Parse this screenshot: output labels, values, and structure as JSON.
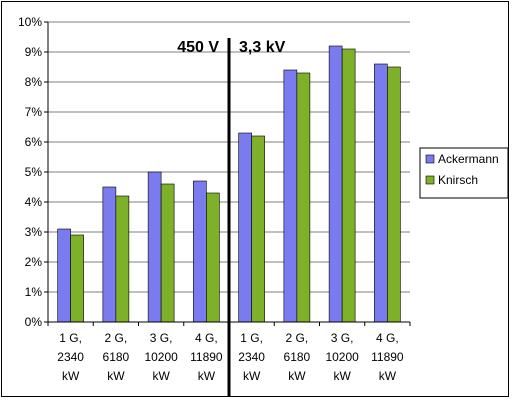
{
  "chart_data": {
    "type": "bar",
    "categories": [
      [
        "1 G,",
        "2340",
        "kW"
      ],
      [
        "2 G,",
        "6180",
        "kW"
      ],
      [
        "3 G,",
        "10200",
        "kW"
      ],
      [
        "4 G,",
        "11890",
        "kW"
      ],
      [
        "1 G,",
        "2340",
        "kW"
      ],
      [
        "2 G,",
        "6180",
        "kW"
      ],
      [
        "3 G,",
        "10200",
        "kW"
      ],
      [
        "4 G,",
        "11890",
        "kW"
      ]
    ],
    "series": [
      {
        "name": "Ackermann",
        "color": "#7b7bf0",
        "values": [
          3.1,
          4.5,
          5.0,
          4.7,
          6.3,
          8.4,
          9.2,
          8.6
        ]
      },
      {
        "name": "Knirsch",
        "color": "#7fb02a",
        "values": [
          2.9,
          4.2,
          4.6,
          4.3,
          6.2,
          8.3,
          9.1,
          8.5
        ]
      }
    ],
    "ylim": [
      0,
      10
    ],
    "ytick_step": 1,
    "ytick_suffix": "%",
    "grid": true,
    "legend": "right",
    "annotations": {
      "left": "450 V",
      "right": "3,3 kV"
    },
    "divider_after_category": 4
  }
}
